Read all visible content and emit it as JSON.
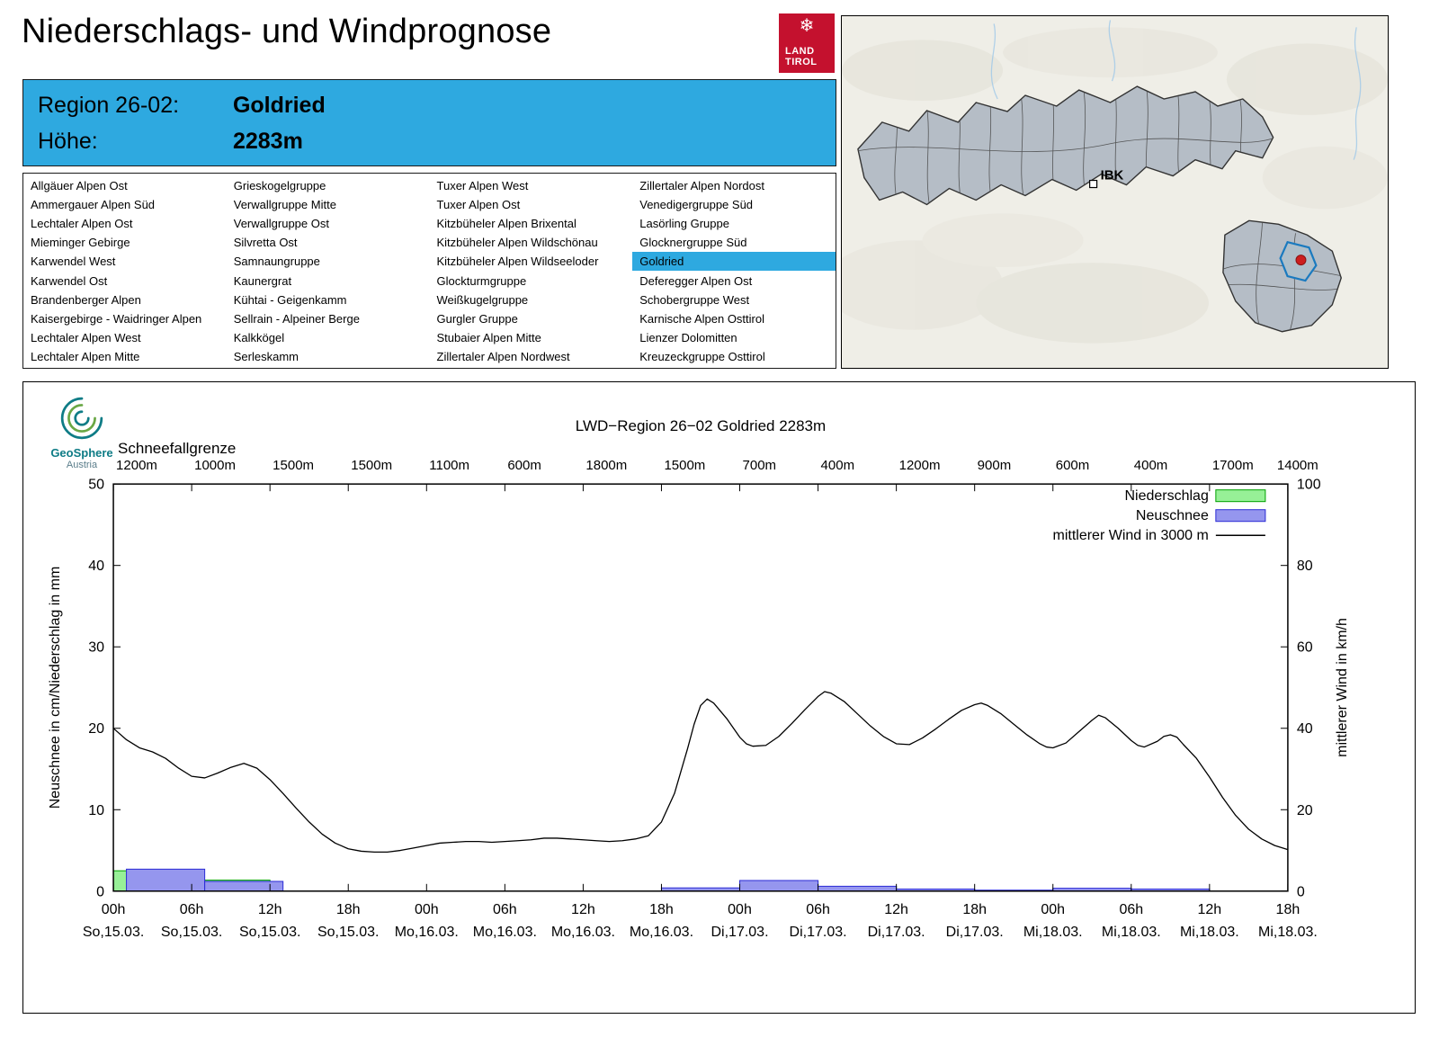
{
  "header": {
    "title": "Niederschlags- und Windprognose",
    "logo_line1": "LAND",
    "logo_line2": "TIROL"
  },
  "region_box": {
    "region_label": "Region 26-02:",
    "region_value": "Goldried",
    "elevation_label": "Höhe:",
    "elevation_value": "2283m"
  },
  "region_list": {
    "selected": "Goldried",
    "columns": [
      [
        "Allgäuer Alpen Ost",
        "Ammergauer Alpen Süd",
        "Lechtaler Alpen Ost",
        "Mieminger Gebirge",
        "Karwendel West",
        "Karwendel Ost",
        "Brandenberger Alpen",
        "Kaisergebirge - Waidringer Alpen",
        "Lechtaler Alpen West",
        "Lechtaler Alpen Mitte"
      ],
      [
        "Grieskogelgruppe",
        "Verwallgruppe Mitte",
        "Verwallgruppe Ost",
        "Silvretta Ost",
        "Samnaungruppe",
        "Kaunergrat",
        "Kühtai - Geigenkamm",
        "Sellrain - Alpeiner Berge",
        "Kalkkögel",
        "Serleskamm"
      ],
      [
        "Tuxer Alpen West",
        "Tuxer Alpen Ost",
        "Kitzbüheler Alpen Brixental",
        "Kitzbüheler Alpen Wildschönau",
        "Kitzbüheler Alpen Wildseeloder",
        "Glockturmgruppe",
        "Weißkugelgruppe",
        "Gurgler Gruppe",
        "Stubaier Alpen Mitte",
        "Zillertaler Alpen Nordwest"
      ],
      [
        "Zillertaler Alpen Nordost",
        "Venedigergruppe Süd",
        "Lasörling Gruppe",
        "Glocknergruppe Süd",
        "Goldried",
        "Deferegger Alpen Ost",
        "Schobergruppe West",
        "Karnische Alpen Osttirol",
        "Lienzer Dolomitten",
        "Kreuzeckgruppe Osttirol"
      ]
    ]
  },
  "map": {
    "ibk_label": "IBK"
  },
  "geosphere": {
    "name": "GeoSphere",
    "country": "Austria"
  },
  "colors": {
    "accent_blue": "#2EA9E0",
    "logo_red": "#C4112E",
    "niederschlag_fill": "#97F097",
    "niederschlag_stroke": "#00A000",
    "neuschnee_fill": "#9596EE",
    "neuschnee_stroke": "#2B2BD5",
    "wind_line": "#000000",
    "map_region_fill": "#B5BDC6",
    "map_highlight_stroke": "#1A7ABF",
    "map_marker_red": "#CC1F1F"
  },
  "chart_data": {
    "type": "bar+line",
    "title": "LWD−Region 26−02 Goldried 2283m",
    "snowline_label": "Schneefallgrenze",
    "snowline_values": [
      "1200m",
      "1000m",
      "1500m",
      "1500m",
      "1100m",
      "600m",
      "1800m",
      "1500m",
      "700m",
      "400m",
      "1200m",
      "900m",
      "600m",
      "400m",
      "1700m",
      "1400m"
    ],
    "ylabel_left": "Neuschnee in cm/Niederschlag in mm",
    "ylabel_right": "mittlerer Wind in km/h",
    "ylim_left": [
      0,
      50
    ],
    "ylim_right": [
      0,
      100
    ],
    "yticks_left": [
      0,
      10,
      20,
      30,
      40,
      50
    ],
    "yticks_right": [
      0,
      20,
      40,
      60,
      80,
      100
    ],
    "x_hours_range": [
      0,
      90
    ],
    "xticks": [
      {
        "hour": 0,
        "time": "00h",
        "date": "So,15.03."
      },
      {
        "hour": 6,
        "time": "06h",
        "date": "So,15.03."
      },
      {
        "hour": 12,
        "time": "12h",
        "date": "So,15.03."
      },
      {
        "hour": 18,
        "time": "18h",
        "date": "So,15.03."
      },
      {
        "hour": 24,
        "time": "00h",
        "date": "Mo,16.03."
      },
      {
        "hour": 30,
        "time": "06h",
        "date": "Mo,16.03."
      },
      {
        "hour": 36,
        "time": "12h",
        "date": "Mo,16.03."
      },
      {
        "hour": 42,
        "time": "18h",
        "date": "Mo,16.03."
      },
      {
        "hour": 48,
        "time": "00h",
        "date": "Di,17.03."
      },
      {
        "hour": 54,
        "time": "06h",
        "date": "Di,17.03."
      },
      {
        "hour": 60,
        "time": "12h",
        "date": "Di,17.03."
      },
      {
        "hour": 66,
        "time": "18h",
        "date": "Di,17.03."
      },
      {
        "hour": 72,
        "time": "00h",
        "date": "Mi,18.03."
      },
      {
        "hour": 78,
        "time": "06h",
        "date": "Mi,18.03."
      },
      {
        "hour": 84,
        "time": "12h",
        "date": "Mi,18.03."
      },
      {
        "hour": 90,
        "time": "18h",
        "date": "Mi,18.03."
      }
    ],
    "legend": [
      {
        "label": "Niederschlag",
        "type": "box",
        "series": "niederschlag"
      },
      {
        "label": "Neuschnee",
        "type": "box",
        "series": "neuschnee"
      },
      {
        "label": "mittlerer Wind in 3000 m",
        "type": "line",
        "series": "wind"
      }
    ],
    "niederschlag_bars_mm": [
      [
        0,
        6,
        2.5
      ],
      [
        6,
        12,
        1.35
      ],
      [
        42,
        48,
        0.35
      ],
      [
        48,
        54,
        1.25
      ],
      [
        54,
        60,
        0.55
      ],
      [
        60,
        66,
        0.2
      ],
      [
        72,
        78,
        0.3
      ],
      [
        78,
        84,
        0.2
      ]
    ],
    "neuschnee_bars_cm": [
      [
        1,
        7,
        2.7
      ],
      [
        7,
        13,
        1.2
      ],
      [
        42,
        48,
        0.4
      ],
      [
        48,
        54,
        1.3
      ],
      [
        54,
        60,
        0.6
      ],
      [
        60,
        66,
        0.25
      ],
      [
        66,
        72,
        0.12
      ],
      [
        72,
        78,
        0.35
      ],
      [
        78,
        84,
        0.25
      ]
    ],
    "wind_points_left_axis": [
      [
        0,
        20.0
      ],
      [
        1,
        18.6
      ],
      [
        2,
        17.6
      ],
      [
        3,
        17.1
      ],
      [
        4,
        16.3
      ],
      [
        5,
        15.1
      ],
      [
        6,
        14.1
      ],
      [
        7,
        13.9
      ],
      [
        8,
        14.5
      ],
      [
        9,
        15.2
      ],
      [
        10,
        15.7
      ],
      [
        11,
        15.1
      ],
      [
        12,
        13.7
      ],
      [
        13,
        12.0
      ],
      [
        14,
        10.2
      ],
      [
        15,
        8.5
      ],
      [
        16,
        7.0
      ],
      [
        17,
        5.9
      ],
      [
        18,
        5.2
      ],
      [
        19,
        4.9
      ],
      [
        20,
        4.8
      ],
      [
        21,
        4.8
      ],
      [
        22,
        5.0
      ],
      [
        23,
        5.3
      ],
      [
        24,
        5.6
      ],
      [
        25,
        5.9
      ],
      [
        26,
        6.0
      ],
      [
        27,
        6.1
      ],
      [
        28,
        6.1
      ],
      [
        29,
        6.0
      ],
      [
        30,
        6.1
      ],
      [
        31,
        6.2
      ],
      [
        32,
        6.3
      ],
      [
        33,
        6.5
      ],
      [
        34,
        6.5
      ],
      [
        35,
        6.4
      ],
      [
        36,
        6.3
      ],
      [
        37,
        6.2
      ],
      [
        38,
        6.1
      ],
      [
        39,
        6.2
      ],
      [
        40,
        6.4
      ],
      [
        41,
        6.8
      ],
      [
        42,
        8.5
      ],
      [
        43,
        12.0
      ],
      [
        44,
        17.5
      ],
      [
        44.5,
        20.5
      ],
      [
        45,
        22.8
      ],
      [
        45.5,
        23.6
      ],
      [
        46,
        23.1
      ],
      [
        47,
        21.2
      ],
      [
        48,
        18.9
      ],
      [
        48.5,
        18.1
      ],
      [
        49,
        17.8
      ],
      [
        50,
        17.9
      ],
      [
        51,
        19.0
      ],
      [
        52,
        20.6
      ],
      [
        53,
        22.3
      ],
      [
        54,
        23.9
      ],
      [
        54.5,
        24.5
      ],
      [
        55,
        24.3
      ],
      [
        56,
        23.3
      ],
      [
        57,
        21.8
      ],
      [
        58,
        20.3
      ],
      [
        59,
        19.0
      ],
      [
        60,
        18.1
      ],
      [
        61,
        18.0
      ],
      [
        62,
        18.8
      ],
      [
        63,
        19.9
      ],
      [
        64,
        21.1
      ],
      [
        65,
        22.2
      ],
      [
        66,
        22.9
      ],
      [
        66.5,
        23.1
      ],
      [
        67,
        22.8
      ],
      [
        68,
        21.8
      ],
      [
        69,
        20.5
      ],
      [
        70,
        19.2
      ],
      [
        71,
        18.1
      ],
      [
        71.5,
        17.7
      ],
      [
        72,
        17.6
      ],
      [
        73,
        18.2
      ],
      [
        74,
        19.6
      ],
      [
        75,
        21.0
      ],
      [
        75.5,
        21.6
      ],
      [
        76,
        21.3
      ],
      [
        77,
        20.0
      ],
      [
        78,
        18.5
      ],
      [
        78.5,
        17.9
      ],
      [
        79,
        17.7
      ],
      [
        80,
        18.4
      ],
      [
        80.5,
        19.0
      ],
      [
        81,
        19.2
      ],
      [
        81.5,
        18.9
      ],
      [
        82,
        18.0
      ],
      [
        83,
        16.3
      ],
      [
        84,
        14.0
      ],
      [
        85,
        11.5
      ],
      [
        86,
        9.3
      ],
      [
        87,
        7.6
      ],
      [
        88,
        6.4
      ],
      [
        89,
        5.6
      ],
      [
        90,
        5.1
      ]
    ]
  }
}
